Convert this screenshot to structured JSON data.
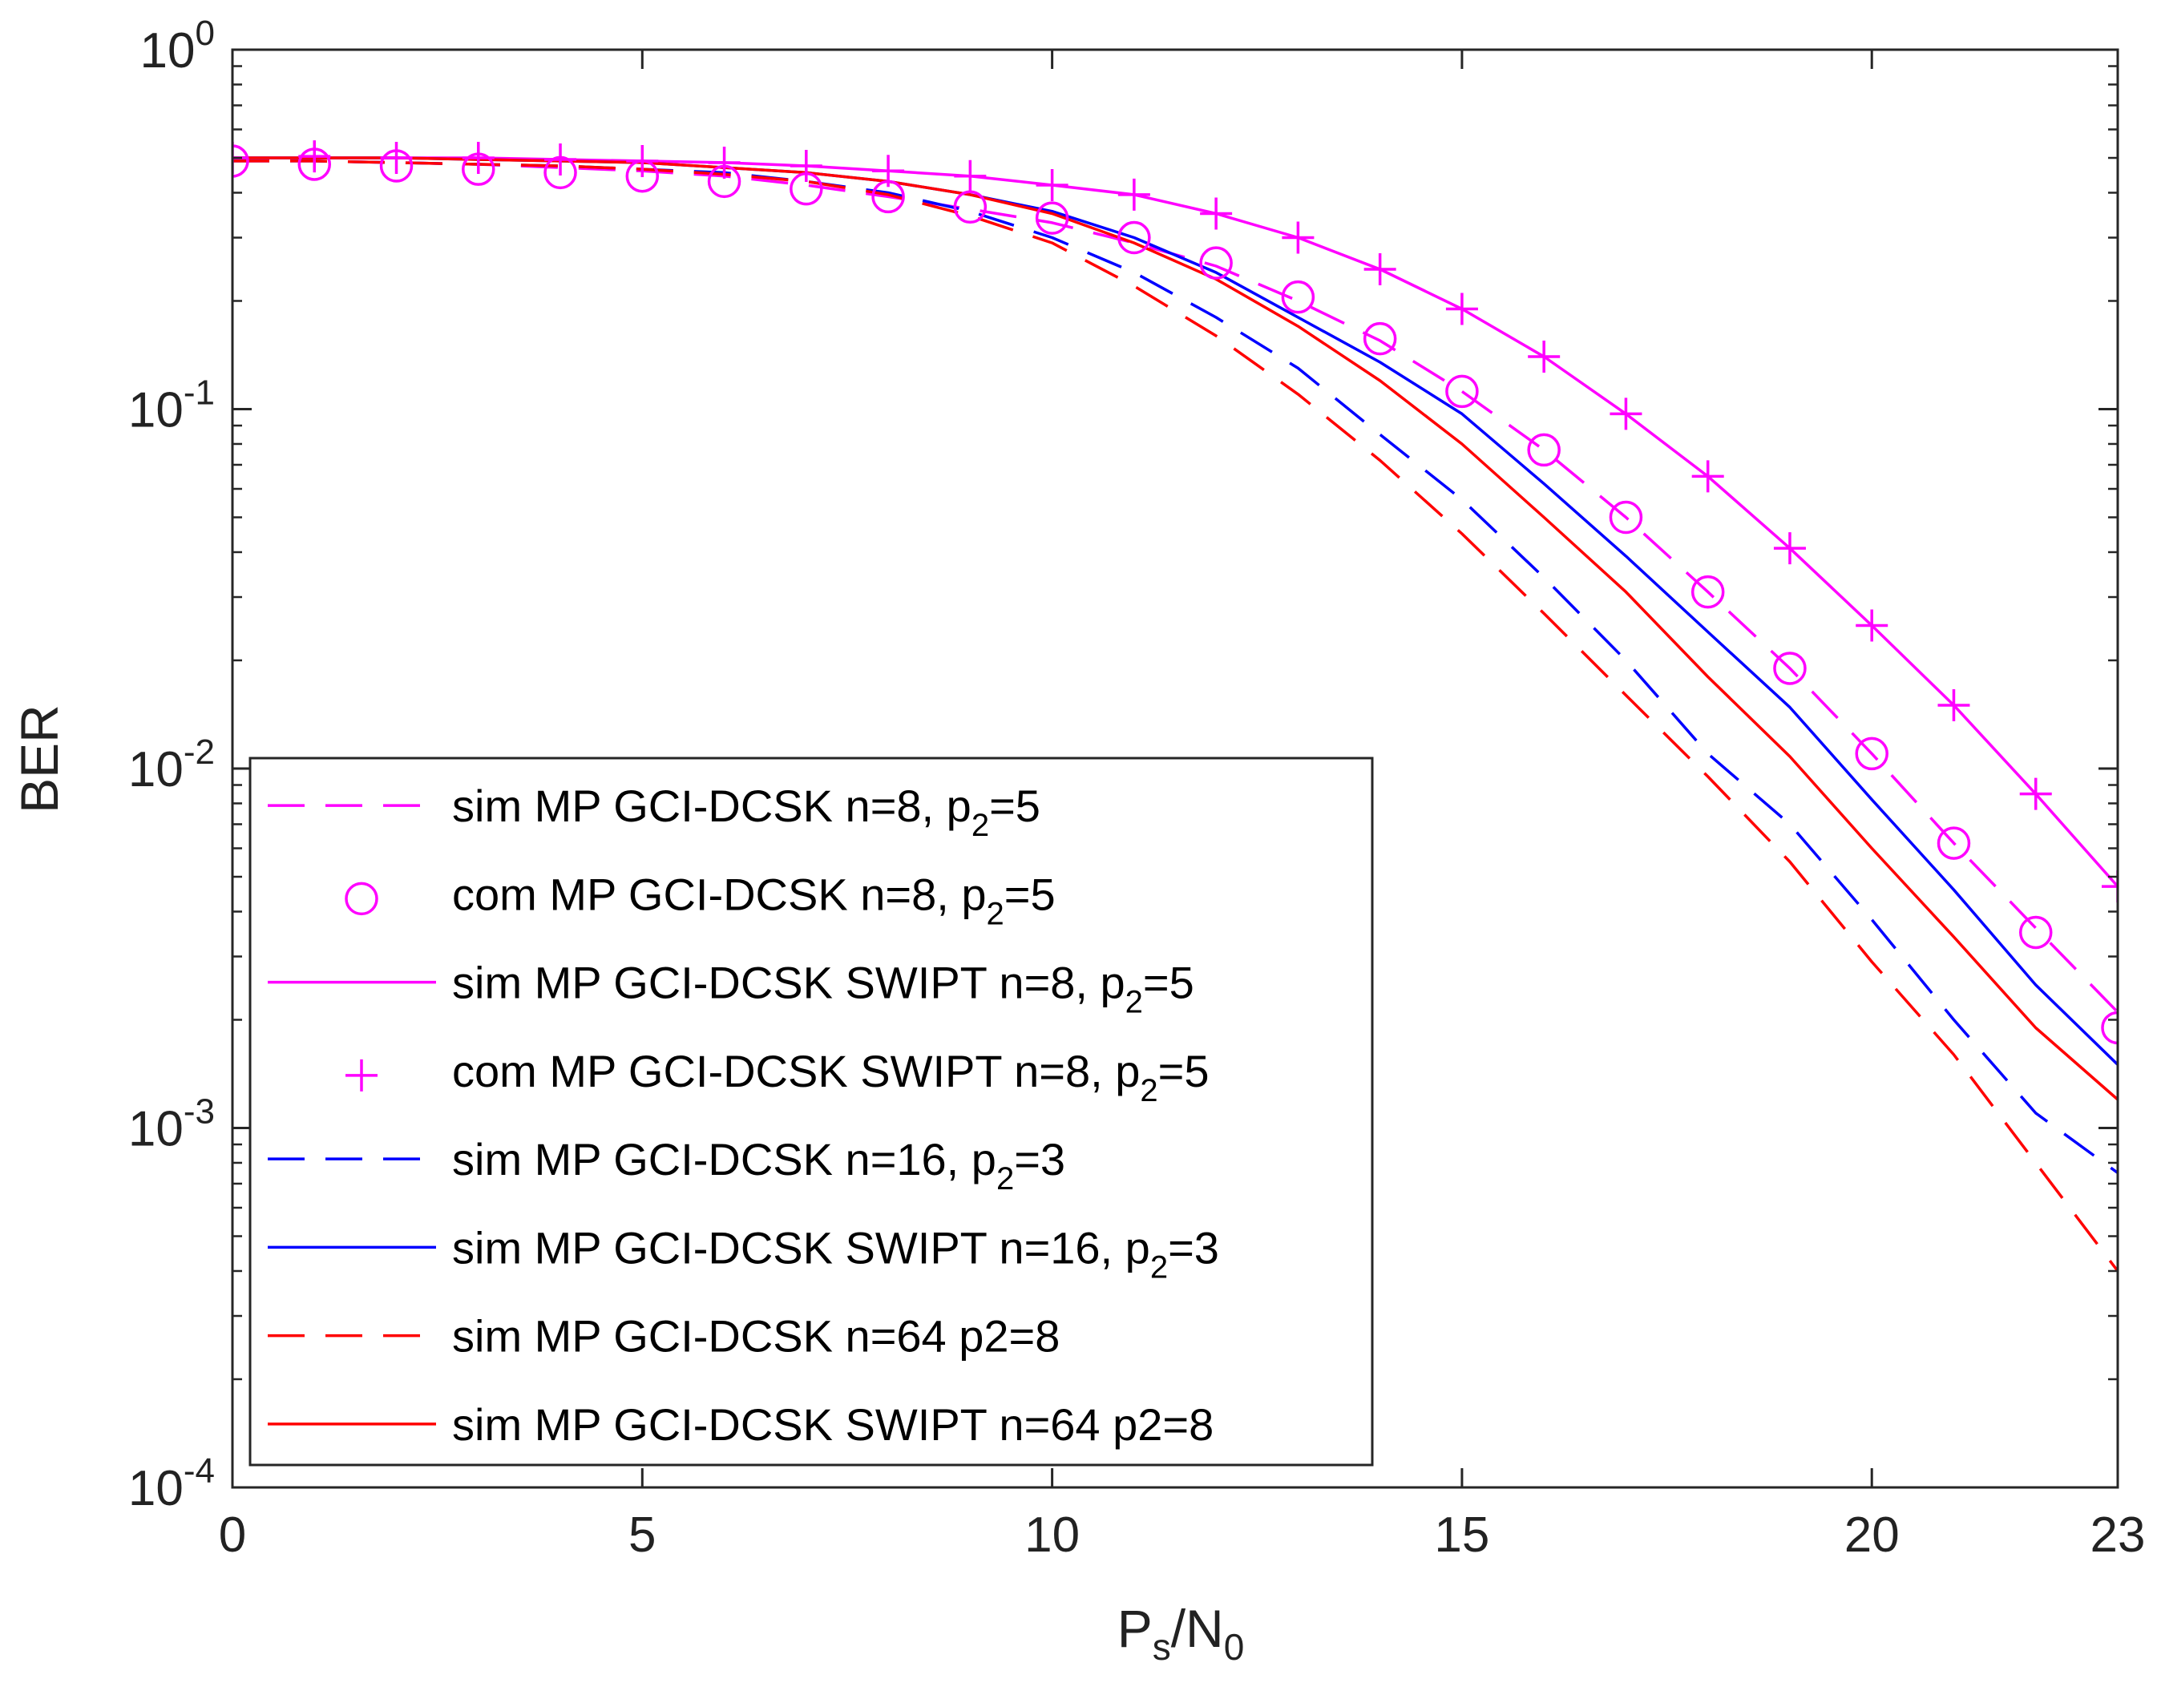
{
  "chart_data": {
    "type": "line",
    "title": "",
    "xlabel": {
      "main": "P",
      "sub1": "s",
      "mid": "/N",
      "sub2": "0"
    },
    "ylabel": "BER",
    "xlim": [
      0,
      23
    ],
    "ylim": [
      0.0001,
      1
    ],
    "yscale": "log",
    "x_ticks": [
      0,
      5,
      10,
      15,
      20,
      23
    ],
    "x_tick_labels": [
      "0",
      "5",
      "10",
      "15",
      "20",
      "23"
    ],
    "y_ticks": [
      1,
      0.1,
      0.01,
      0.001,
      0.0001
    ],
    "y_tick_labels": [
      {
        "base": "10",
        "exp": "0"
      },
      {
        "base": "10",
        "exp": "-1"
      },
      {
        "base": "10",
        "exp": "-2"
      },
      {
        "base": "10",
        "exp": "-3"
      },
      {
        "base": "10",
        "exp": "-4"
      }
    ],
    "grid": false,
    "legend_position": "bottom-left",
    "series": [
      {
        "name": "sim MP GCI-DCSK n=8, p2=5",
        "legend": {
          "main": "sim MP GCI-DCSK n=8, p",
          "sub": "2",
          "tail": "=5"
        },
        "color": "#ff00ff",
        "line": "dashed",
        "marker": "none",
        "x": [
          0,
          1,
          2,
          3,
          4,
          5,
          6,
          7,
          8,
          9,
          10,
          11,
          12,
          13,
          14,
          15,
          16,
          17,
          18,
          19,
          20,
          21,
          22,
          23
        ],
        "y": [
          0.49,
          0.49,
          0.485,
          0.48,
          0.47,
          0.46,
          0.445,
          0.42,
          0.39,
          0.36,
          0.33,
          0.29,
          0.25,
          0.2,
          0.155,
          0.112,
          0.077,
          0.05,
          0.031,
          0.019,
          0.011,
          0.0062,
          0.0036,
          0.0021
        ]
      },
      {
        "name": "com MP GCI-DCSK n=8, p2=5",
        "legend": {
          "main": "com MP GCI-DCSK n=8, p",
          "sub": "2",
          "tail": "=5"
        },
        "color": "#ff00ff",
        "line": "none",
        "marker": "circle",
        "x": [
          0,
          1,
          2,
          3,
          4,
          5,
          6,
          7,
          8,
          9,
          10,
          11,
          12,
          13,
          14,
          15,
          16,
          17,
          18,
          19,
          20,
          21,
          22,
          23
        ],
        "y": [
          0.49,
          0.48,
          0.475,
          0.465,
          0.455,
          0.445,
          0.43,
          0.41,
          0.39,
          0.365,
          0.34,
          0.3,
          0.255,
          0.205,
          0.157,
          0.112,
          0.077,
          0.05,
          0.031,
          0.019,
          0.011,
          0.0062,
          0.0035,
          0.0019
        ]
      },
      {
        "name": "sim MP GCI-DCSK SWIPT n=8, p2=5",
        "legend": {
          "main": "sim MP GCI-DCSK SWIPT n=8, p",
          "sub": "2",
          "tail": "=5"
        },
        "color": "#ff00ff",
        "line": "solid",
        "marker": "none",
        "x": [
          0,
          1,
          2,
          3,
          4,
          5,
          6,
          7,
          8,
          9,
          10,
          11,
          12,
          13,
          14,
          15,
          16,
          17,
          18,
          19,
          20,
          21,
          22,
          23
        ],
        "y": [
          0.5,
          0.5,
          0.5,
          0.5,
          0.495,
          0.49,
          0.485,
          0.475,
          0.46,
          0.445,
          0.42,
          0.395,
          0.35,
          0.3,
          0.245,
          0.19,
          0.14,
          0.097,
          0.065,
          0.041,
          0.025,
          0.015,
          0.0085,
          0.0047
        ]
      },
      {
        "name": "com MP GCI-DCSK SWIPT n=8, p2=5",
        "legend": {
          "main": "com MP GCI-DCSK SWIPT n=8, p",
          "sub": "2",
          "tail": "=5"
        },
        "color": "#ff00ff",
        "line": "none",
        "marker": "plus",
        "x": [
          0,
          1,
          2,
          3,
          4,
          5,
          6,
          7,
          8,
          9,
          10,
          11,
          12,
          13,
          14,
          15,
          16,
          17,
          18,
          19,
          20,
          21,
          22,
          23
        ],
        "y": [
          0.5,
          0.505,
          0.5,
          0.5,
          0.495,
          0.49,
          0.485,
          0.475,
          0.46,
          0.445,
          0.42,
          0.395,
          0.35,
          0.3,
          0.245,
          0.19,
          0.14,
          0.097,
          0.065,
          0.041,
          0.025,
          0.015,
          0.0085,
          0.0047
        ]
      },
      {
        "name": "sim MP GCI-DCSK n=16, p2=3",
        "legend": {
          "main": "sim MP GCI-DCSK n=16, p",
          "sub": "2",
          "tail": "=3"
        },
        "color": "#0000ff",
        "line": "dashed",
        "marker": "none",
        "x": [
          0,
          1,
          2,
          3,
          4,
          5,
          6,
          7,
          8,
          9,
          10,
          11,
          12,
          13,
          14,
          15,
          16,
          17,
          18,
          19,
          20,
          21,
          22,
          23
        ],
        "y": [
          0.49,
          0.49,
          0.485,
          0.48,
          0.475,
          0.465,
          0.455,
          0.43,
          0.4,
          0.355,
          0.3,
          0.24,
          0.18,
          0.13,
          0.085,
          0.056,
          0.034,
          0.02,
          0.011,
          0.007,
          0.0038,
          0.002,
          0.0011,
          0.00075
        ]
      },
      {
        "name": "sim MP GCI-DCSK SWIPT n=16, p2=3",
        "legend": {
          "main": "sim MP GCI-DCSK SWIPT n=16, p",
          "sub": "2",
          "tail": "=3"
        },
        "color": "#0000ff",
        "line": "solid",
        "marker": "none",
        "x": [
          0,
          1,
          2,
          3,
          4,
          5,
          6,
          7,
          8,
          9,
          10,
          11,
          12,
          13,
          14,
          15,
          16,
          17,
          18,
          19,
          20,
          21,
          22,
          23
        ],
        "y": [
          0.5,
          0.5,
          0.5,
          0.495,
          0.49,
          0.485,
          0.47,
          0.455,
          0.43,
          0.395,
          0.355,
          0.3,
          0.24,
          0.18,
          0.135,
          0.097,
          0.062,
          0.039,
          0.024,
          0.0148,
          0.0082,
          0.0046,
          0.0025,
          0.0015
        ]
      },
      {
        "name": "sim MP GCI-DCSK n=64 p2=8",
        "legend": {
          "main": "sim MP GCI-DCSK n=64 p2=8",
          "sub": "",
          "tail": ""
        },
        "color": "#ff0000",
        "line": "dashed",
        "marker": "none",
        "x": [
          0,
          1,
          2,
          3,
          4,
          5,
          6,
          7,
          8,
          9,
          10,
          11,
          12,
          13,
          14,
          15,
          16,
          17,
          18,
          19,
          20,
          21,
          22,
          23
        ],
        "y": [
          0.49,
          0.49,
          0.485,
          0.48,
          0.475,
          0.465,
          0.45,
          0.43,
          0.395,
          0.345,
          0.29,
          0.22,
          0.16,
          0.11,
          0.072,
          0.045,
          0.027,
          0.016,
          0.0095,
          0.0055,
          0.0029,
          0.0016,
          0.0008,
          0.0004
        ]
      },
      {
        "name": "sim MP GCI-DCSK SWIPT n=64 p2=8",
        "legend": {
          "main": "sim MP GCI-DCSK SWIPT n=64 p2=8",
          "sub": "",
          "tail": ""
        },
        "color": "#ff0000",
        "line": "solid",
        "marker": "none",
        "x": [
          0,
          1,
          2,
          3,
          4,
          5,
          6,
          7,
          8,
          9,
          10,
          11,
          12,
          13,
          14,
          15,
          16,
          17,
          18,
          19,
          20,
          21,
          22,
          23
        ],
        "y": [
          0.5,
          0.5,
          0.5,
          0.495,
          0.49,
          0.485,
          0.47,
          0.455,
          0.43,
          0.395,
          0.35,
          0.29,
          0.23,
          0.17,
          0.12,
          0.08,
          0.05,
          0.031,
          0.018,
          0.0108,
          0.006,
          0.0034,
          0.0019,
          0.0012
        ]
      }
    ]
  }
}
